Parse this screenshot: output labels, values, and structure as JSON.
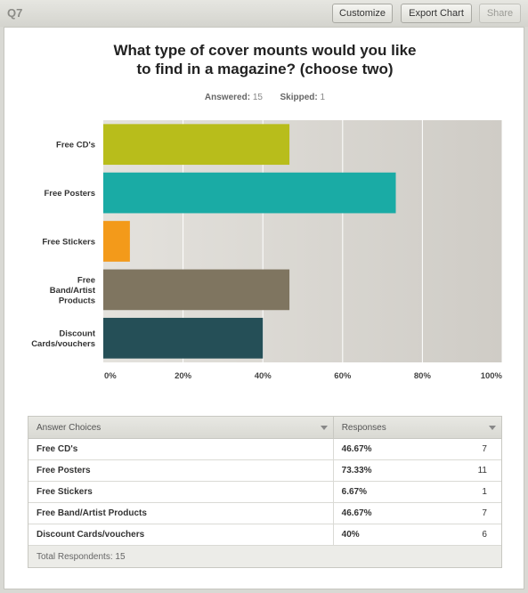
{
  "header": {
    "question_label": "Q7",
    "customize_label": "Customize",
    "export_label": "Export Chart",
    "share_label": "Share"
  },
  "summary": {
    "answered_label": "Answered:",
    "answered_value": "15",
    "skipped_label": "Skipped:",
    "skipped_value": "1"
  },
  "colors": {
    "plot_bg": "#d8d6d1",
    "grid": "#ffffff"
  },
  "chart_data": {
    "type": "bar",
    "orientation": "horizontal",
    "title": "What type of cover mounts would you like to find in a magazine? (choose two)",
    "title_lines": [
      "What type of cover mounts would you like",
      "to find in a magazine? (choose two)"
    ],
    "categories": [
      {
        "lines": [
          "Free CD's"
        ]
      },
      {
        "lines": [
          "Free Posters"
        ]
      },
      {
        "lines": [
          "Free Stickers"
        ]
      },
      {
        "lines": [
          "Free",
          "Band/Artist",
          "Products"
        ]
      },
      {
        "lines": [
          "Discount",
          "Cards/vouchers"
        ]
      }
    ],
    "values": [
      46.67,
      73.33,
      6.67,
      46.67,
      40
    ],
    "bar_colors": [
      "#b8bd1b",
      "#1aaba5",
      "#f39a1a",
      "#7f7560",
      "#254f57"
    ],
    "xlim": [
      0,
      100
    ],
    "ticks": [
      0,
      20,
      40,
      60,
      80,
      100
    ],
    "tick_labels": [
      "0%",
      "20%",
      "40%",
      "60%",
      "80%",
      "100%"
    ],
    "grid": true
  },
  "table": {
    "col_answer": "Answer Choices",
    "col_responses": "Responses",
    "rows": [
      {
        "choice": "Free CD's",
        "percent": "46.67%",
        "count": "7"
      },
      {
        "choice": "Free Posters",
        "percent": "73.33%",
        "count": "11"
      },
      {
        "choice": "Free Stickers",
        "percent": "6.67%",
        "count": "1"
      },
      {
        "choice": "Free Band/Artist Products",
        "percent": "46.67%",
        "count": "7"
      },
      {
        "choice": "Discount Cards/vouchers",
        "percent": "40%",
        "count": "6"
      }
    ],
    "footer": "Total Respondents: 15"
  }
}
